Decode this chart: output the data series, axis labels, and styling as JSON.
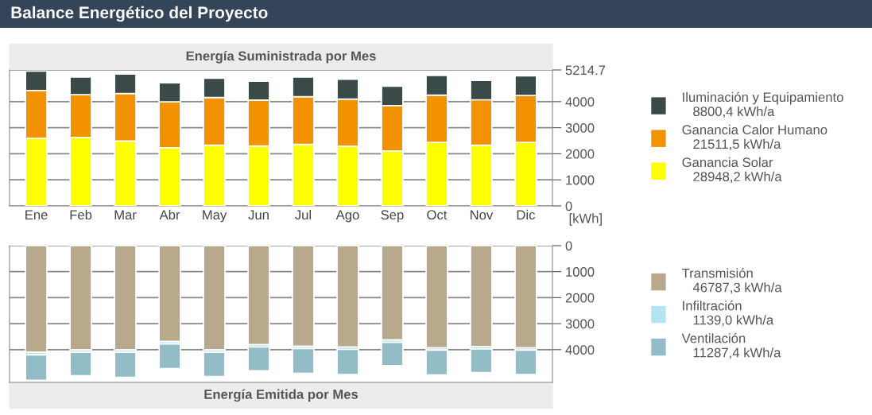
{
  "chart_data": [
    {
      "type": "other",
      "title": "Balance Energético del Proyecto"
    },
    {
      "type": "bar",
      "stacked": true,
      "title": "Energía Suministrada por Mes",
      "ylabel": "[kWh]",
      "categories": [
        "Ene",
        "Feb",
        "Mar",
        "Abr",
        "May",
        "Jun",
        "Jul",
        "Ago",
        "Sep",
        "Oct",
        "Nov",
        "Dic"
      ],
      "series": [
        {
          "name": "Ganancia Solar",
          "color": "#ffff00",
          "values": [
            2600,
            2630,
            2490,
            2230,
            2330,
            2300,
            2360,
            2290,
            2110,
            2440,
            2330,
            2440
          ]
        },
        {
          "name": "Ganancia Calor Humano",
          "color": "#f39200",
          "values": [
            1830,
            1640,
            1820,
            1760,
            1830,
            1760,
            1830,
            1810,
            1740,
            1810,
            1740,
            1800
          ]
        },
        {
          "name": "Iluminación y Equipamiento",
          "color": "#3a4a48",
          "values": [
            740,
            670,
            750,
            730,
            740,
            720,
            750,
            760,
            740,
            750,
            740,
            750
          ]
        }
      ],
      "annotations": [
        "28948,2 kWh/a",
        "21511,5 kWh/a",
        "8800,4 kWh/a"
      ],
      "ylim": [
        0,
        5214.7
      ],
      "yticks": [
        0,
        1000,
        2000,
        3000,
        4000,
        5214.7
      ],
      "grid": "y",
      "legend": "right"
    },
    {
      "type": "bar",
      "stacked": true,
      "title": "Energía Emitida por Mes",
      "categories": [
        null,
        null,
        null,
        null,
        null,
        null,
        null,
        null,
        null,
        null,
        null,
        null
      ],
      "series": [
        {
          "name": "Transmisión",
          "color": "#b9a98c",
          "values": [
            4100,
            4010,
            4010,
            3690,
            4010,
            3810,
            3870,
            3900,
            3630,
            3930,
            3880,
            3930
          ]
        },
        {
          "name": "Infiltración",
          "color": "#b3e5f0",
          "values": [
            100,
            90,
            90,
            90,
            90,
            90,
            90,
            90,
            90,
            90,
            90,
            90
          ]
        },
        {
          "name": "Ventilación",
          "color": "#93bdc6",
          "values": [
            980,
            900,
            960,
            950,
            930,
            910,
            950,
            970,
            890,
            950,
            910,
            940
          ]
        }
      ],
      "annotations": [
        "46787,3 kWh/a",
        "1139,0 kWh/a",
        "11287,4 kWh/a"
      ],
      "ylim": [
        5260,
        0
      ],
      "yticks": [
        0,
        1000,
        2000,
        3000,
        4000
      ],
      "grid": "y",
      "legend": "right",
      "tick_labels": "y"
    }
  ]
}
